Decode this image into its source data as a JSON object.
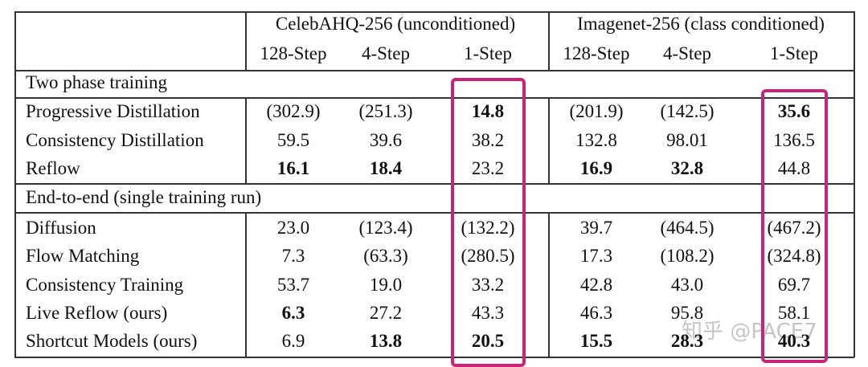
{
  "table": {
    "header": {
      "groups": [
        "CelebAHQ-256 (unconditioned)",
        "Imagenet-256 (class conditioned)"
      ],
      "steps": [
        "128-Step",
        "4-Step",
        "1-Step",
        "128-Step",
        "4-Step",
        "1-Step"
      ]
    },
    "sections": [
      {
        "title": "Two phase training",
        "rows": [
          {
            "label": "Progressive Distillation",
            "cells": [
              "(302.9)",
              "(251.3)",
              "14.8",
              "(201.9)",
              "(142.5)",
              "35.6"
            ],
            "bold": [
              false,
              false,
              true,
              false,
              false,
              true
            ]
          },
          {
            "label": "Consistency Distillation",
            "cells": [
              "59.5",
              "39.6",
              "38.2",
              "132.8",
              "98.01",
              "136.5"
            ],
            "bold": [
              false,
              false,
              false,
              false,
              false,
              false
            ]
          },
          {
            "label": "Reflow",
            "cells": [
              "16.1",
              "18.4",
              "23.2",
              "16.9",
              "32.8",
              "44.8"
            ],
            "bold": [
              true,
              true,
              false,
              true,
              true,
              false
            ]
          }
        ]
      },
      {
        "title": "End-to-end (single training run)",
        "rows": [
          {
            "label": "Diffusion",
            "cells": [
              "23.0",
              "(123.4)",
              "(132.2)",
              "39.7",
              "(464.5)",
              "(467.2)"
            ],
            "bold": [
              false,
              false,
              false,
              false,
              false,
              false
            ]
          },
          {
            "label": "Flow Matching",
            "cells": [
              "7.3",
              "(63.3)",
              "(280.5)",
              "17.3",
              "(108.2)",
              "(324.8)"
            ],
            "bold": [
              false,
              false,
              false,
              false,
              false,
              false
            ]
          },
          {
            "label": "Consistency Training",
            "cells": [
              "53.7",
              "19.0",
              "33.2",
              "42.8",
              "43.0",
              "69.7"
            ],
            "bold": [
              false,
              false,
              false,
              false,
              false,
              false
            ]
          },
          {
            "label": "Live Reflow (ours)",
            "cells": [
              "6.3",
              "27.2",
              "43.3",
              "46.3",
              "95.8",
              "58.1"
            ],
            "bold": [
              true,
              false,
              false,
              false,
              false,
              false
            ]
          },
          {
            "label": "Shortcut Models (ours)",
            "cells": [
              "6.9",
              "13.8",
              "20.5",
              "15.5",
              "28.3",
              "40.3"
            ],
            "bold": [
              false,
              true,
              true,
              true,
              true,
              true
            ]
          }
        ]
      }
    ]
  },
  "watermark": "知乎 @PACE7"
}
